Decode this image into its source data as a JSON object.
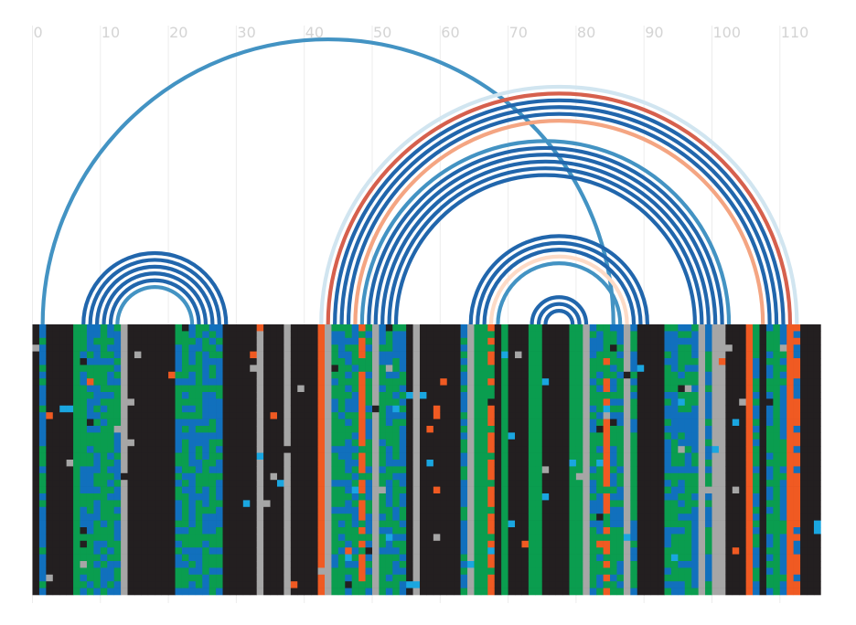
{
  "chart_data": {
    "type": "heatmap",
    "title": "",
    "xlabel": "",
    "ylabel": "",
    "xlim": [
      0,
      117
    ],
    "x_ticks": [
      {
        "value": 0,
        "label": "0"
      },
      {
        "value": 10,
        "label": "10"
      },
      {
        "value": 20,
        "label": "20"
      },
      {
        "value": 30,
        "label": "30"
      },
      {
        "value": 40,
        "label": "40"
      },
      {
        "value": 50,
        "label": "50"
      },
      {
        "value": 60,
        "label": "60"
      },
      {
        "value": 70,
        "label": "70"
      },
      {
        "value": 80,
        "label": "80"
      },
      {
        "value": 90,
        "label": "90"
      },
      {
        "value": 100,
        "label": "100"
      },
      {
        "value": 110,
        "label": "110"
      }
    ],
    "grid": true,
    "n_rows": 40,
    "colors": {
      "A": "#0a9d4f",
      "C": "#1170bd",
      "G": "#231f20",
      "U": "#f05a22",
      "gap": "#a6a6a6",
      "other": "#1aa6e0"
    },
    "column_base": "GGUGGGGGGGGGGGGGGGGGGGGGGGGGGGGGGGGGGGGGGGGGGGGGGGGGGGGGGGGGGGGGGGGGGGGGGGGGGGGGGGGGGGGGGGGGGGGGGGGGGGGGGGGGGGGGGUGG",
    "columns": [
      {
        "x": 0,
        "base": "G"
      },
      {
        "x": 1,
        "base": "C",
        "mix": "A"
      },
      {
        "x": 2,
        "base": "G"
      },
      {
        "x": 3,
        "base": "G"
      },
      {
        "x": 4,
        "base": "G"
      },
      {
        "x": 5,
        "base": "G"
      },
      {
        "x": 6,
        "base": "A"
      },
      {
        "x": 7,
        "base": "A",
        "mix": "C"
      },
      {
        "x": 8,
        "base": "C",
        "mix": "A"
      },
      {
        "x": 9,
        "base": "C",
        "mix": "A"
      },
      {
        "x": 10,
        "base": "A",
        "mix": "C"
      },
      {
        "x": 11,
        "base": "A",
        "mix": "C"
      },
      {
        "x": 12,
        "base": "C",
        "mix": "A"
      },
      {
        "x": 13,
        "base": "gap"
      },
      {
        "x": 14,
        "base": "G"
      },
      {
        "x": 15,
        "base": "G"
      },
      {
        "x": 16,
        "base": "G"
      },
      {
        "x": 17,
        "base": "G"
      },
      {
        "x": 18,
        "base": "G"
      },
      {
        "x": 19,
        "base": "G"
      },
      {
        "x": 20,
        "base": "G"
      },
      {
        "x": 21,
        "base": "A",
        "mix": "C"
      },
      {
        "x": 22,
        "base": "A",
        "mix": "C"
      },
      {
        "x": 23,
        "base": "C",
        "mix": "A"
      },
      {
        "x": 24,
        "base": "A",
        "mix": "C"
      },
      {
        "x": 25,
        "base": "C",
        "mix": "A"
      },
      {
        "x": 26,
        "base": "A",
        "mix": "C"
      },
      {
        "x": 27,
        "base": "C",
        "mix": "A"
      },
      {
        "x": 28,
        "base": "G"
      },
      {
        "x": 29,
        "base": "G"
      },
      {
        "x": 30,
        "base": "G"
      },
      {
        "x": 31,
        "base": "G"
      },
      {
        "x": 32,
        "base": "G"
      },
      {
        "x": 33,
        "base": "gap"
      },
      {
        "x": 34,
        "base": "G"
      },
      {
        "x": 35,
        "base": "G"
      },
      {
        "x": 36,
        "base": "G"
      },
      {
        "x": 37,
        "base": "gap"
      },
      {
        "x": 38,
        "base": "G"
      },
      {
        "x": 39,
        "base": "G"
      },
      {
        "x": 40,
        "base": "G"
      },
      {
        "x": 41,
        "base": "G"
      },
      {
        "x": 42,
        "base": "U"
      },
      {
        "x": 43,
        "base": "gap"
      },
      {
        "x": 44,
        "base": "A",
        "mix": "C"
      },
      {
        "x": 45,
        "base": "A",
        "mix": "C"
      },
      {
        "x": 46,
        "base": "C",
        "mix": "A"
      },
      {
        "x": 47,
        "base": "A",
        "mix": "C"
      },
      {
        "x": 48,
        "base": "U",
        "mix": "A"
      },
      {
        "x": 49,
        "base": "C",
        "mix": "A"
      },
      {
        "x": 50,
        "base": "gap"
      },
      {
        "x": 51,
        "base": "A",
        "mix": "C"
      },
      {
        "x": 52,
        "base": "C",
        "mix": "A"
      },
      {
        "x": 53,
        "base": "A",
        "mix": "C"
      },
      {
        "x": 54,
        "base": "C",
        "mix": "A"
      },
      {
        "x": 55,
        "base": "G"
      },
      {
        "x": 56,
        "base": "gap"
      },
      {
        "x": 57,
        "base": "G"
      },
      {
        "x": 58,
        "base": "G"
      },
      {
        "x": 59,
        "base": "G"
      },
      {
        "x": 60,
        "base": "G"
      },
      {
        "x": 61,
        "base": "G"
      },
      {
        "x": 62,
        "base": "G"
      },
      {
        "x": 63,
        "base": "C",
        "mix": "A"
      },
      {
        "x": 64,
        "base": "gap"
      },
      {
        "x": 65,
        "base": "A"
      },
      {
        "x": 66,
        "base": "A"
      },
      {
        "x": 67,
        "base": "U",
        "mix": "A"
      },
      {
        "x": 68,
        "base": "G"
      },
      {
        "x": 69,
        "base": "A"
      },
      {
        "x": 70,
        "base": "G"
      },
      {
        "x": 71,
        "base": "G"
      },
      {
        "x": 72,
        "base": "G"
      },
      {
        "x": 73,
        "base": "A"
      },
      {
        "x": 74,
        "base": "A"
      },
      {
        "x": 75,
        "base": "G"
      },
      {
        "x": 76,
        "base": "G"
      },
      {
        "x": 77,
        "base": "G"
      },
      {
        "x": 78,
        "base": "G"
      },
      {
        "x": 79,
        "base": "A"
      },
      {
        "x": 80,
        "base": "A"
      },
      {
        "x": 81,
        "base": "gap"
      },
      {
        "x": 82,
        "base": "A",
        "mix": "C"
      },
      {
        "x": 83,
        "base": "A",
        "mix": "C"
      },
      {
        "x": 84,
        "base": "U",
        "mix": "A"
      },
      {
        "x": 85,
        "base": "A",
        "mix": "C"
      },
      {
        "x": 86,
        "base": "A",
        "mix": "C"
      },
      {
        "x": 87,
        "base": "gap"
      },
      {
        "x": 88,
        "base": "A",
        "mix": "C"
      },
      {
        "x": 89,
        "base": "G"
      },
      {
        "x": 90,
        "base": "G"
      },
      {
        "x": 91,
        "base": "G"
      },
      {
        "x": 92,
        "base": "G"
      },
      {
        "x": 93,
        "base": "A",
        "mix": "C"
      },
      {
        "x": 94,
        "base": "C",
        "mix": "A"
      },
      {
        "x": 95,
        "base": "A",
        "mix": "C"
      },
      {
        "x": 96,
        "base": "A",
        "mix": "C"
      },
      {
        "x": 97,
        "base": "C",
        "mix": "A"
      },
      {
        "x": 98,
        "base": "gap"
      },
      {
        "x": 99,
        "base": "C",
        "mix": "A"
      },
      {
        "x": 100,
        "base": "gap"
      },
      {
        "x": 101,
        "base": "gap"
      },
      {
        "x": 102,
        "base": "G"
      },
      {
        "x": 103,
        "base": "G"
      },
      {
        "x": 104,
        "base": "G"
      },
      {
        "x": 105,
        "base": "U"
      },
      {
        "x": 106,
        "base": "A",
        "mix": "C"
      },
      {
        "x": 107,
        "base": "G"
      },
      {
        "x": 108,
        "base": "A",
        "mix": "C"
      },
      {
        "x": 109,
        "base": "A"
      },
      {
        "x": 110,
        "base": "C",
        "mix": "A"
      },
      {
        "x": 111,
        "base": "U"
      },
      {
        "x": 112,
        "base": "U",
        "mix": "C"
      },
      {
        "x": 113,
        "base": "G"
      },
      {
        "x": 114,
        "base": "G"
      },
      {
        "x": 115,
        "base": "G"
      }
    ],
    "arcs": [
      {
        "i": 1,
        "j": 85,
        "color": "#4393c3"
      },
      {
        "i": 7,
        "j": 28,
        "color": "#2166ac"
      },
      {
        "i": 8,
        "j": 27,
        "color": "#2166ac"
      },
      {
        "i": 9,
        "j": 26,
        "color": "#2166ac"
      },
      {
        "i": 10,
        "j": 25,
        "color": "#2166ac"
      },
      {
        "i": 11,
        "j": 24,
        "color": "#2166ac"
      },
      {
        "i": 12,
        "j": 23,
        "color": "#4393c3"
      },
      {
        "i": 42,
        "j": 112,
        "color": "#d1e5f0"
      },
      {
        "i": 43,
        "j": 111,
        "color": "#d6604d"
      },
      {
        "i": 44,
        "j": 110,
        "color": "#2166ac"
      },
      {
        "i": 45,
        "j": 109,
        "color": "#2166ac"
      },
      {
        "i": 46,
        "j": 108,
        "color": "#2166ac"
      },
      {
        "i": 47,
        "j": 107,
        "color": "#f4a582"
      },
      {
        "i": 48,
        "j": 102,
        "color": "#4393c3"
      },
      {
        "i": 49,
        "j": 101,
        "color": "#2166ac"
      },
      {
        "i": 50,
        "j": 100,
        "color": "#2166ac"
      },
      {
        "i": 51,
        "j": 99,
        "color": "#2166ac"
      },
      {
        "i": 52,
        "j": 98,
        "color": "#2166ac"
      },
      {
        "i": 53,
        "j": 97,
        "color": "#2166ac"
      },
      {
        "i": 64,
        "j": 90,
        "color": "#2166ac"
      },
      {
        "i": 65,
        "j": 89,
        "color": "#2166ac"
      },
      {
        "i": 66,
        "j": 88,
        "color": "#2166ac"
      },
      {
        "i": 67,
        "j": 87,
        "color": "#fddbc7"
      },
      {
        "i": 68,
        "j": 86,
        "color": "#4393c3"
      },
      {
        "i": 73,
        "j": 81,
        "color": "#2166ac"
      },
      {
        "i": 74,
        "j": 80,
        "color": "#2166ac"
      },
      {
        "i": 75,
        "j": 79,
        "color": "#2166ac"
      }
    ]
  }
}
